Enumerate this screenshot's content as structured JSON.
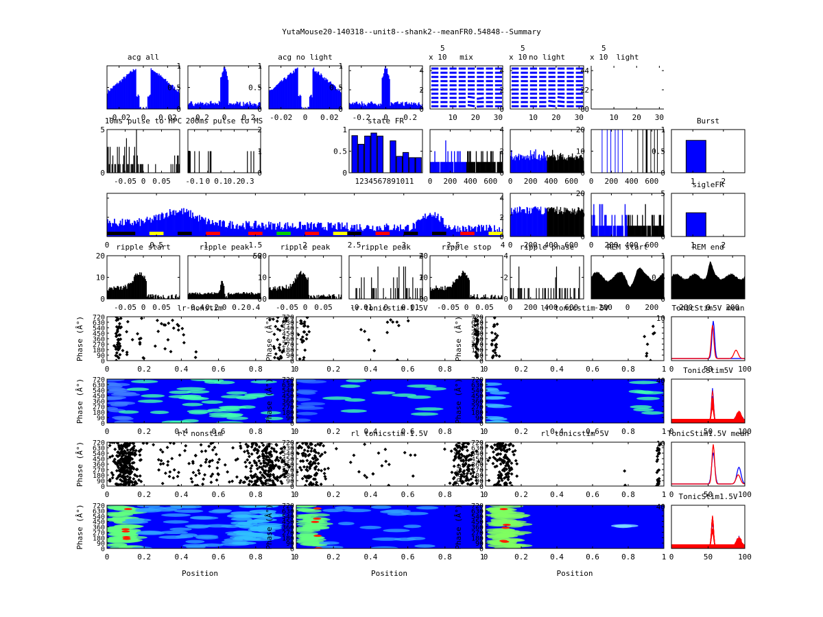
{
  "figure": {
    "suptitle": "YutaMouse20-140318--unit8--shank2--meanFR0.54848--Summary",
    "colors": {
      "blue": "#0000ff",
      "black": "#000000",
      "red": "#ff0000",
      "yellow": "#ffff00",
      "green": "#00c000"
    }
  },
  "chart_data": [
    {
      "id": "acg-all",
      "type": "bar",
      "title": "acg all",
      "xticks": [
        "-0.02",
        "0",
        "0.02"
      ],
      "xlim": [
        -0.03,
        0.03
      ],
      "yticks": [
        "0",
        "0.5",
        "1"
      ],
      "ylim": [
        0,
        1
      ],
      "shape": "acg-dip",
      "color": "#0000ff"
    },
    {
      "id": "acg-all-wide",
      "type": "bar",
      "title": "",
      "xticks": [
        "-0.2",
        "0",
        "0.2"
      ],
      "xlim": [
        -0.3,
        0.3
      ],
      "yticks": [
        "0",
        "0.5",
        "1"
      ],
      "ylim": [
        0,
        1
      ],
      "shape": "acg-peak",
      "color": "#0000ff"
    },
    {
      "id": "acg-no-light",
      "type": "bar",
      "title": "acg no light",
      "xticks": [
        "-0.02",
        "0",
        "0.02"
      ],
      "xlim": [
        -0.03,
        0.03
      ],
      "yticks": [
        "0",
        "0.5",
        "1"
      ],
      "ylim": [
        0,
        1
      ],
      "shape": "acg-dip",
      "color": "#0000ff"
    },
    {
      "id": "acg-no-light-wide",
      "type": "bar",
      "title": "",
      "xticks": [
        "-0.2",
        "0",
        "0.2"
      ],
      "xlim": [
        -0.3,
        0.3
      ],
      "yticks": [
        "0",
        "2",
        "4"
      ],
      "ylim": [
        0,
        4.5
      ],
      "shape": "acg-peak",
      "color": "#0000ff"
    },
    {
      "id": "mix",
      "type": "line",
      "title": "mix",
      "exponent_label": "x 10",
      "exponent": "5",
      "xticks": [
        "10",
        "20",
        "30"
      ],
      "xlim": [
        0,
        32
      ],
      "yticks": [
        "0",
        "2",
        "4"
      ],
      "ylim": [
        0,
        4.5
      ],
      "shape": "stripes",
      "color": "#0000ff"
    },
    {
      "id": "no-light",
      "type": "line",
      "title": "no light",
      "exponent_label": "x 10",
      "exponent": "5",
      "xticks": [
        "10",
        "20",
        "30"
      ],
      "xlim": [
        0,
        32
      ],
      "yticks": [
        "0",
        "2",
        "4"
      ],
      "ylim": [
        0,
        4.5
      ],
      "shape": "stripes",
      "color": "#0000ff"
    },
    {
      "id": "light",
      "type": "line",
      "title": "light",
      "exponent_label": "x 10",
      "exponent": "5",
      "xticks": [
        "10",
        "20",
        "30"
      ],
      "xlim": [
        0,
        32
      ],
      "yticks": [
        "0",
        "2",
        "4"
      ],
      "ylim": [
        0,
        4.5
      ],
      "shape": "empty",
      "color": "#0000ff"
    },
    {
      "id": "pulse-hpc",
      "type": "bar",
      "title": "10ms pulse to HPC",
      "xticks": [
        "-0.05",
        "0",
        "0.05"
      ],
      "xlim": [
        -0.1,
        0.1
      ],
      "yticks": [
        "0",
        "5"
      ],
      "ylim": [
        0,
        5
      ],
      "shape": "sparse-left",
      "color": "#000000"
    },
    {
      "id": "pulse-ms",
      "type": "bar",
      "title": "200ms pulse to MS",
      "xticks": [
        "-0.1",
        "0",
        "0.1",
        "0.2",
        "0.3"
      ],
      "xlim": [
        -0.15,
        0.4
      ],
      "yticks": [
        "0",
        "1",
        "2"
      ],
      "ylim": [
        0,
        2
      ],
      "shape": "sparse-lines",
      "color": "#000000"
    },
    {
      "id": "state-fr",
      "type": "bar",
      "title": "state FR",
      "categories": [
        "1",
        "2",
        "3",
        "4",
        "5",
        "6",
        "7",
        "8",
        "9",
        "10",
        "11"
      ],
      "xtick_text": "1234567891011",
      "values": [
        0.86,
        0.66,
        0.85,
        0.92,
        0.85,
        0,
        0.74,
        0.38,
        0.47,
        0.35,
        0.35
      ],
      "yticks": [
        "0",
        "0.5",
        "1"
      ],
      "ylim": [
        0,
        1
      ],
      "color": "#0000ff"
    },
    {
      "id": "fr-time-1",
      "type": "bar",
      "title": "",
      "xticks": [
        "0",
        "200",
        "400",
        "600"
      ],
      "xlim": [
        0,
        720
      ],
      "yticks": [
        "0",
        "2",
        "4"
      ],
      "ylim": [
        0,
        4
      ],
      "shape": "split-sparse",
      "color": "#0000ff"
    },
    {
      "id": "fr-time-2",
      "type": "bar",
      "title": "",
      "xticks": [
        "0",
        "200",
        "400",
        "600"
      ],
      "xlim": [
        0,
        720
      ],
      "yticks": [
        "0",
        "10",
        "20"
      ],
      "ylim": [
        0,
        20
      ],
      "shape": "split-dense",
      "color": "#0000ff"
    },
    {
      "id": "fr-time-3",
      "type": "bar",
      "title": "",
      "xticks": [
        "0",
        "200",
        "400",
        "600"
      ],
      "xlim": [
        0,
        720
      ],
      "yticks": [
        "0",
        "0.5",
        "1"
      ],
      "ylim": [
        0,
        1
      ],
      "shape": "vlines",
      "color": "#0000ff"
    },
    {
      "id": "burst",
      "type": "bar",
      "title": "Burst",
      "xticks": [
        "1",
        "2"
      ],
      "xlim": [
        0.3,
        2.7
      ],
      "values": [
        0.75
      ],
      "ylim": [
        0,
        1
      ],
      "color": "#0000ff"
    },
    {
      "id": "long-fr",
      "type": "bar",
      "title": "",
      "xticks": [
        "0",
        "0.5",
        "1",
        "1.5",
        "2",
        "2.5",
        "3",
        "3.5",
        "4"
      ],
      "xlim": [
        0,
        4
      ],
      "yticks": [
        "0",
        "2",
        "4"
      ],
      "ylim": [
        0,
        4.5
      ],
      "shape": "long",
      "color": "#0000ff"
    },
    {
      "id": "fr-time-4",
      "type": "bar",
      "title": "",
      "xticks": [
        "0",
        "200",
        "400",
        "600"
      ],
      "xlim": [
        0,
        720
      ],
      "yticks": [
        "0",
        "10",
        "20"
      ],
      "ylim": [
        0,
        20
      ],
      "shape": "split-dense",
      "color": "#0000ff"
    },
    {
      "id": "fr-time-5",
      "type": "bar",
      "title": "",
      "xticks": [
        "0",
        "200",
        "400",
        "600"
      ],
      "xlim": [
        0,
        720
      ],
      "yticks": [
        "0",
        "5"
      ],
      "ylim": [
        0,
        5
      ],
      "shape": "split-sparse",
      "color": "#0000ff"
    },
    {
      "id": "sigle-fr",
      "type": "bar",
      "title": "sigleFR",
      "xticks": [
        "1",
        "2"
      ],
      "xlim": [
        0.3,
        2.7
      ],
      "values": [
        0.55
      ],
      "ylim": [
        0,
        1
      ],
      "color": "#0000ff"
    },
    {
      "id": "ripple-start",
      "type": "bar",
      "title": "ripple start",
      "xticks": [
        "-0.05",
        "0",
        "0.05"
      ],
      "xlim": [
        -0.1,
        0.1
      ],
      "yticks": [
        "0",
        "10",
        "20"
      ],
      "ylim": [
        0,
        20
      ],
      "shape": "ripple-a",
      "color": "#000000"
    },
    {
      "id": "ripple-peak-1",
      "type": "bar",
      "title": "ripple peak",
      "xticks": [
        "-0.4",
        "-0.2",
        "0",
        "0.2",
        "0.4"
      ],
      "xlim": [
        -0.5,
        0.5
      ],
      "yticks": [
        "0",
        "50"
      ],
      "ylim": [
        0,
        50
      ],
      "shape": "ripple-b",
      "color": "#000000"
    },
    {
      "id": "ripple-peak-2",
      "type": "bar",
      "title": "ripple peak",
      "xticks": [
        "-0.05",
        "0",
        "0.05"
      ],
      "xlim": [
        -0.1,
        0.1
      ],
      "yticks": [
        "0",
        "10",
        "20"
      ],
      "ylim": [
        0,
        20
      ],
      "shape": "ripple-a",
      "color": "#000000"
    },
    {
      "id": "ripple-peak-3",
      "type": "bar",
      "title": "ripple peak",
      "xticks": [
        "-0.01",
        "0",
        "0.01"
      ],
      "xlim": [
        -0.015,
        0.015
      ],
      "yticks": [
        "0",
        "2",
        "4"
      ],
      "ylim": [
        0,
        4
      ],
      "shape": "sparse-lines2",
      "color": "#000000"
    },
    {
      "id": "ripple-stop",
      "type": "bar",
      "title": "ripple stop",
      "xticks": [
        "-0.05",
        "0",
        "0.05"
      ],
      "xlim": [
        -0.1,
        0.1
      ],
      "yticks": [
        "0",
        "10",
        "20"
      ],
      "ylim": [
        0,
        20
      ],
      "shape": "ripple-a",
      "color": "#000000"
    },
    {
      "id": "ripple-phase",
      "type": "bar",
      "title": "ripple phase",
      "xticks": [
        "0",
        "200",
        "400",
        "600"
      ],
      "xlim": [
        0,
        720
      ],
      "yticks": [
        "0",
        "2",
        "4"
      ],
      "ylim": [
        0,
        4
      ],
      "shape": "sparse-lines2",
      "color": "#000000"
    },
    {
      "id": "rem-start",
      "type": "area",
      "title": "REM start",
      "xticks": [
        "-200",
        "0",
        "200"
      ],
      "xlim": [
        -300,
        300
      ],
      "yticks": [
        "0",
        "0.5",
        "1"
      ],
      "ylim": [
        0,
        1
      ],
      "shape": "rem",
      "color": "#000000"
    },
    {
      "id": "rem-end",
      "type": "area",
      "title": "REM end",
      "xticks": [
        "-200",
        "0",
        "200"
      ],
      "xlim": [
        -300,
        300
      ],
      "yticks": [],
      "ylim": [
        0,
        1
      ],
      "shape": "rem2",
      "color": "#000000"
    },
    {
      "id": "lr-nonstim",
      "type": "scatter",
      "title": "lr nonstim",
      "ylabel": "Phase (Â°)",
      "xticks": [
        "0",
        "0.2",
        "0.4",
        "0.6",
        "0.8",
        "1"
      ],
      "xlim": [
        0,
        1
      ],
      "yticks": [
        "0",
        "90",
        "180",
        "270",
        "360",
        "450",
        "540",
        "630",
        "720"
      ],
      "ylim": [
        0,
        720
      ],
      "shape": "scatter-sparse"
    },
    {
      "id": "lr-tonicstim-1.5v",
      "type": "scatter",
      "title": "lr tonicstim 1.5V",
      "ylabel": "Phase (Â°)",
      "xticks": [
        "0",
        "0.2",
        "0.4",
        "0.6",
        "0.8",
        "1"
      ],
      "xlim": [
        0,
        1
      ],
      "yticks": [
        "0",
        "90",
        "180",
        "270",
        "360",
        "450",
        "540",
        "630",
        "720"
      ],
      "ylim": [
        0,
        720
      ],
      "shape": "scatter-sparse2"
    },
    {
      "id": "lr-tonicstim-5v",
      "type": "scatter",
      "title": "lr tonicstim 5V",
      "ylabel": "Phase (Â°)",
      "xticks": [
        "0",
        "0.2",
        "0.4",
        "0.6",
        "0.8",
        "1"
      ],
      "xlim": [
        0,
        1
      ],
      "yticks": [
        "0",
        "90",
        "180",
        "270",
        "360",
        "450",
        "540",
        "630",
        "720"
      ],
      "ylim": [
        0,
        720
      ],
      "right_ytick": "10",
      "shape": "scatter-sparse3"
    },
    {
      "id": "tonicstim5v-mean",
      "type": "line",
      "title": "TonicStim5V mean",
      "xticks": [
        "0",
        "50",
        "100"
      ],
      "xlim": [
        0,
        100
      ],
      "ylim": [
        0,
        1
      ],
      "series": [
        {
          "name": "blue",
          "color": "#0000ff"
        },
        {
          "name": "red",
          "color": "#ff0000"
        }
      ],
      "shape": "mean1"
    },
    {
      "id": "lr-nonstim-heat",
      "type": "heatmap",
      "title": "",
      "ylabel": "Phase (Â°)",
      "xticks": [
        "0",
        "0.2",
        "0.4",
        "0.6",
        "0.8",
        "1"
      ],
      "xlim": [
        0,
        1
      ],
      "yticks": [
        "0",
        "90",
        "180",
        "270",
        "360",
        "450",
        "540",
        "630",
        "720"
      ],
      "ylim": [
        0,
        720
      ],
      "shape": "heat-sparse"
    },
    {
      "id": "lr-tonicstim-1.5v-heat",
      "type": "heatmap",
      "title": "",
      "ylabel": "Phase (Â°)",
      "xticks": [
        "0",
        "0.2",
        "0.4",
        "0.6",
        "0.8",
        "1"
      ],
      "xlim": [
        0,
        1
      ],
      "yticks": [
        "0",
        "90",
        "180",
        "270",
        "360",
        "450",
        "540",
        "630",
        "720"
      ],
      "ylim": [
        0,
        720
      ],
      "shape": "heat-sparse2"
    },
    {
      "id": "lr-tonicstim-5v-heat",
      "type": "heatmap",
      "title": "",
      "ylabel": "Phase (Â°)",
      "xticks": [
        "0",
        "0.2",
        "0.4",
        "0.6",
        "0.8",
        "1"
      ],
      "xlim": [
        0,
        1
      ],
      "yticks": [
        "0",
        "90",
        "180",
        "270",
        "360",
        "450",
        "540",
        "630",
        "720"
      ],
      "ylim": [
        0,
        720
      ],
      "right_ytick": "40",
      "shape": "heat-sparse3"
    },
    {
      "id": "tonicstim5v",
      "type": "line",
      "title": "TonicStim5V",
      "xticks": [
        "0",
        "50",
        "100"
      ],
      "xlim": [
        0,
        100
      ],
      "ylim": [
        0,
        1
      ],
      "shape": "many1"
    },
    {
      "id": "rl-nonstim",
      "type": "scatter",
      "title": "rl nonstim",
      "ylabel": "Phase (Â°)",
      "xticks": [
        "0",
        "0.2",
        "0.4",
        "0.6",
        "0.8",
        "1"
      ],
      "xlim": [
        0,
        1
      ],
      "yticks": [
        "0",
        "90",
        "180",
        "270",
        "360",
        "450",
        "540",
        "630",
        "720"
      ],
      "ylim": [
        0,
        720
      ],
      "shape": "scatter-dense"
    },
    {
      "id": "rl-tonicstim-1.5v",
      "type": "scatter",
      "title": "rl tonicstim 1.5V",
      "ylabel": "Phase (Â°)",
      "xticks": [
        "0",
        "0.2",
        "0.4",
        "0.6",
        "0.8",
        "1"
      ],
      "xlim": [
        0,
        1
      ],
      "yticks": [
        "0",
        "90",
        "180",
        "270",
        "360",
        "450",
        "540",
        "630",
        "720"
      ],
      "ylim": [
        0,
        720
      ],
      "shape": "scatter-dense2"
    },
    {
      "id": "rl-tonicstim-5v",
      "type": "scatter",
      "title": "rl tonicstim 5V",
      "ylabel": "Phase (Â°)",
      "xticks": [
        "0",
        "0.2",
        "0.4",
        "0.6",
        "0.8",
        "1"
      ],
      "xlim": [
        0,
        1
      ],
      "yticks": [
        "0",
        "90",
        "180",
        "270",
        "360",
        "450",
        "540",
        "630",
        "720"
      ],
      "ylim": [
        0,
        720
      ],
      "right_ytick": "10",
      "shape": "scatter-dense3"
    },
    {
      "id": "tonicstim1.5v-mean",
      "type": "line",
      "title": "TonicStim1.5V mean",
      "xticks": [
        "0",
        "50",
        "100"
      ],
      "xlim": [
        0,
        100
      ],
      "ylim": [
        0,
        1
      ],
      "series": [
        {
          "name": "blue",
          "color": "#0000ff"
        },
        {
          "name": "red",
          "color": "#ff0000"
        }
      ],
      "shape": "mean2"
    },
    {
      "id": "rl-nonstim-heat",
      "type": "heatmap",
      "title": "",
      "ylabel": "Phase (Â°)",
      "xlabel": "Position",
      "xticks": [
        "0",
        "0.2",
        "0.4",
        "0.6",
        "0.8",
        "1"
      ],
      "xlim": [
        0,
        1
      ],
      "yticks": [
        "0",
        "90",
        "180",
        "270",
        "360",
        "450",
        "540",
        "630",
        "720"
      ],
      "ylim": [
        0,
        720
      ],
      "shape": "heat-dense"
    },
    {
      "id": "rl-tonicstim-1.5v-heat",
      "type": "heatmap",
      "title": "",
      "ylabel": "Phase (Â°)",
      "xlabel": "Position",
      "xticks": [
        "0",
        "0.2",
        "0.4",
        "0.6",
        "0.8",
        "1"
      ],
      "xlim": [
        0,
        1
      ],
      "yticks": [
        "0",
        "90",
        "180",
        "270",
        "360",
        "450",
        "540",
        "630",
        "720"
      ],
      "ylim": [
        0,
        720
      ],
      "shape": "heat-dense2"
    },
    {
      "id": "rl-tonicstim-5v-heat",
      "type": "heatmap",
      "title": "",
      "ylabel": "Phase (Â°)",
      "xlabel": "Position",
      "xticks": [
        "0",
        "0.2",
        "0.4",
        "0.6",
        "0.8",
        "1"
      ],
      "xlim": [
        0,
        1
      ],
      "yticks": [
        "0",
        "90",
        "180",
        "270",
        "360",
        "450",
        "540",
        "630",
        "720"
      ],
      "ylim": [
        0,
        720
      ],
      "right_ytick": "40",
      "shape": "heat-dense3"
    },
    {
      "id": "tonicstim1.5v",
      "type": "line",
      "title": "TonicStim1.5V",
      "xticks": [
        "0",
        "50",
        "100"
      ],
      "xlim": [
        0,
        100
      ],
      "ylim": [
        0,
        1
      ],
      "shape": "many2"
    }
  ]
}
